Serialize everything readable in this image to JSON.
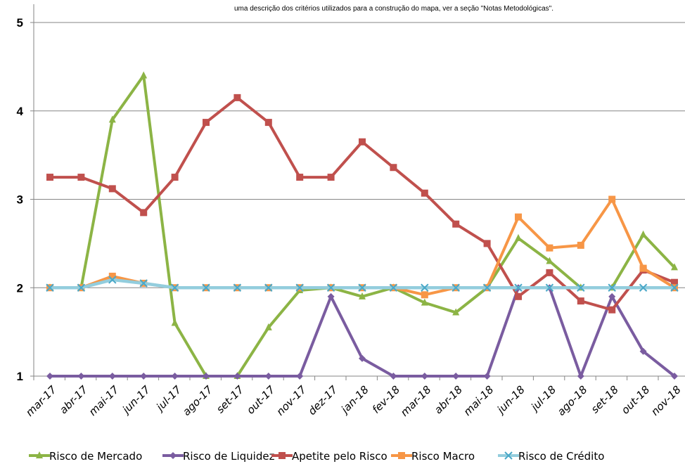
{
  "chart_data": {
    "type": "line",
    "note": "uma descrição dos critérios utilizados para a construção do mapa, ver a seção \"Notas Metodológicas\".",
    "categories": [
      "mar-17",
      "abr-17",
      "mai-17",
      "jun-17",
      "jul-17",
      "ago-17",
      "set-17",
      "out-17",
      "nov-17",
      "dez-17",
      "jan-18",
      "fev-18",
      "mar-18",
      "abr-18",
      "mai-18",
      "jun-18",
      "jul-18",
      "ago-18",
      "set-18",
      "out-18",
      "nov-18"
    ],
    "yticks": [
      1,
      2,
      3,
      4,
      5
    ],
    "ylim": [
      1,
      5.2
    ],
    "grid": "horizontal",
    "legend_position": "bottom",
    "series": [
      {
        "name": "Risco de Mercado",
        "color": "#8cb445",
        "marker": "triangle",
        "values": [
          2.0,
          2.0,
          3.9,
          4.4,
          1.6,
          1.0,
          1.0,
          1.55,
          1.97,
          2.0,
          1.9,
          2.0,
          1.83,
          1.72,
          2.0,
          2.56,
          2.3,
          2.0,
          2.0,
          2.6,
          2.23
        ]
      },
      {
        "name": "Risco de Liquidez",
        "color": "#7a5ca0",
        "marker": "diamond",
        "values": [
          1.0,
          1.0,
          1.0,
          1.0,
          1.0,
          1.0,
          1.0,
          1.0,
          1.0,
          1.9,
          1.2,
          1.0,
          1.0,
          1.0,
          1.0,
          2.0,
          2.0,
          1.0,
          1.9,
          1.28,
          1.0
        ]
      },
      {
        "name": "Apetite pelo Risco",
        "color": "#c0504d",
        "marker": "square",
        "values": [
          3.25,
          3.25,
          3.12,
          2.85,
          3.25,
          3.87,
          4.15,
          3.87,
          3.25,
          3.25,
          3.65,
          3.36,
          3.07,
          2.72,
          2.5,
          1.9,
          2.17,
          1.85,
          1.75,
          2.2,
          2.06
        ]
      },
      {
        "name": "Risco Macro",
        "color": "#f79646",
        "marker": "square",
        "values": [
          2.0,
          2.0,
          2.13,
          2.05,
          2.0,
          2.0,
          2.0,
          2.0,
          2.0,
          2.0,
          2.0,
          2.0,
          1.92,
          2.0,
          2.0,
          2.8,
          2.45,
          2.48,
          3.0,
          2.22,
          2.0
        ]
      },
      {
        "name": "Risco de Crédito",
        "color": "#93cddd",
        "marker": "x",
        "values": [
          2.0,
          2.0,
          2.09,
          2.05,
          2.0,
          2.0,
          2.0,
          2.0,
          2.0,
          2.0,
          2.0,
          2.0,
          2.0,
          2.0,
          2.0,
          2.0,
          2.0,
          2.0,
          2.0,
          2.0,
          2.0
        ]
      }
    ]
  }
}
